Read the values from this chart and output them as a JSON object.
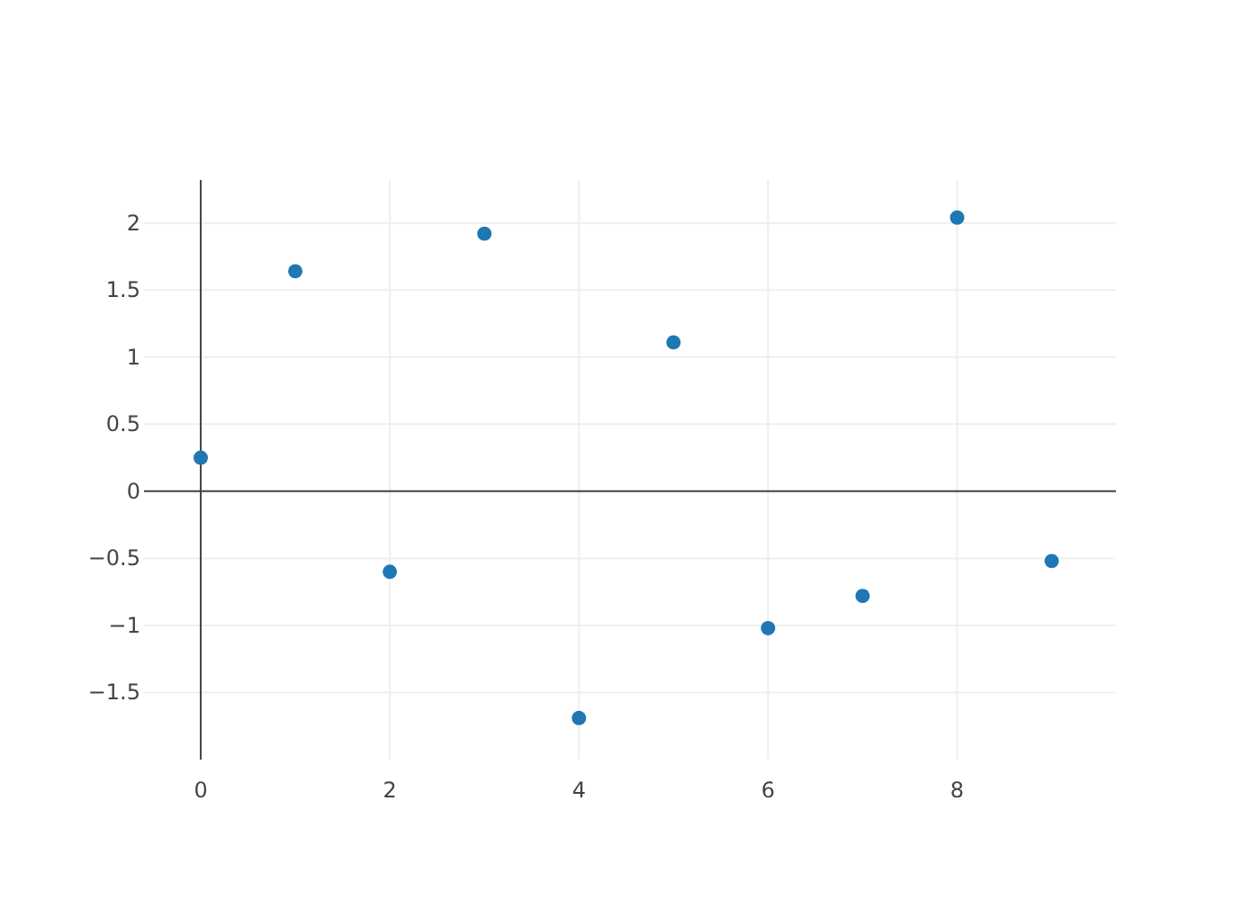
{
  "chart_data": {
    "type": "scatter",
    "x": [
      0,
      1,
      2,
      3,
      4,
      5,
      6,
      7,
      8,
      9
    ],
    "series": [
      {
        "color": "#1f77b4",
        "values": [
          0.25,
          1.64,
          -0.6,
          1.92,
          -1.69,
          1.11,
          -1.02,
          -0.78,
          2.04,
          -0.52
        ]
      }
    ],
    "xlim": [
      -0.6,
      9.68
    ],
    "ylim": [
      -2,
      2.32
    ],
    "xticks": [
      0,
      2,
      4,
      6,
      8
    ],
    "yticks": [
      -1.5,
      -1,
      -0.5,
      0,
      0.5,
      1,
      1.5,
      2
    ],
    "grid": true,
    "marker": "circle"
  }
}
